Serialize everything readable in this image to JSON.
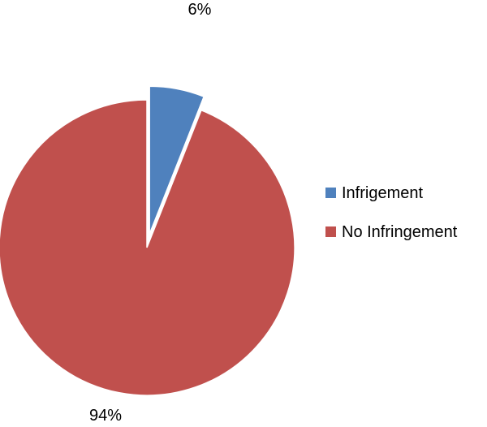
{
  "chart_data": {
    "type": "pie",
    "exploded_slice": "Infrigement",
    "series": [
      {
        "name": "",
        "categories": [
          "Infrigement",
          "No Infringement"
        ],
        "values": [
          6,
          94
        ],
        "labels": [
          "6%",
          "94%"
        ],
        "colors": [
          "#4F81BD",
          "#C0504D"
        ]
      }
    ],
    "legend": {
      "placement": "right",
      "entries": [
        "Infrigement",
        "No Infringement"
      ]
    }
  }
}
